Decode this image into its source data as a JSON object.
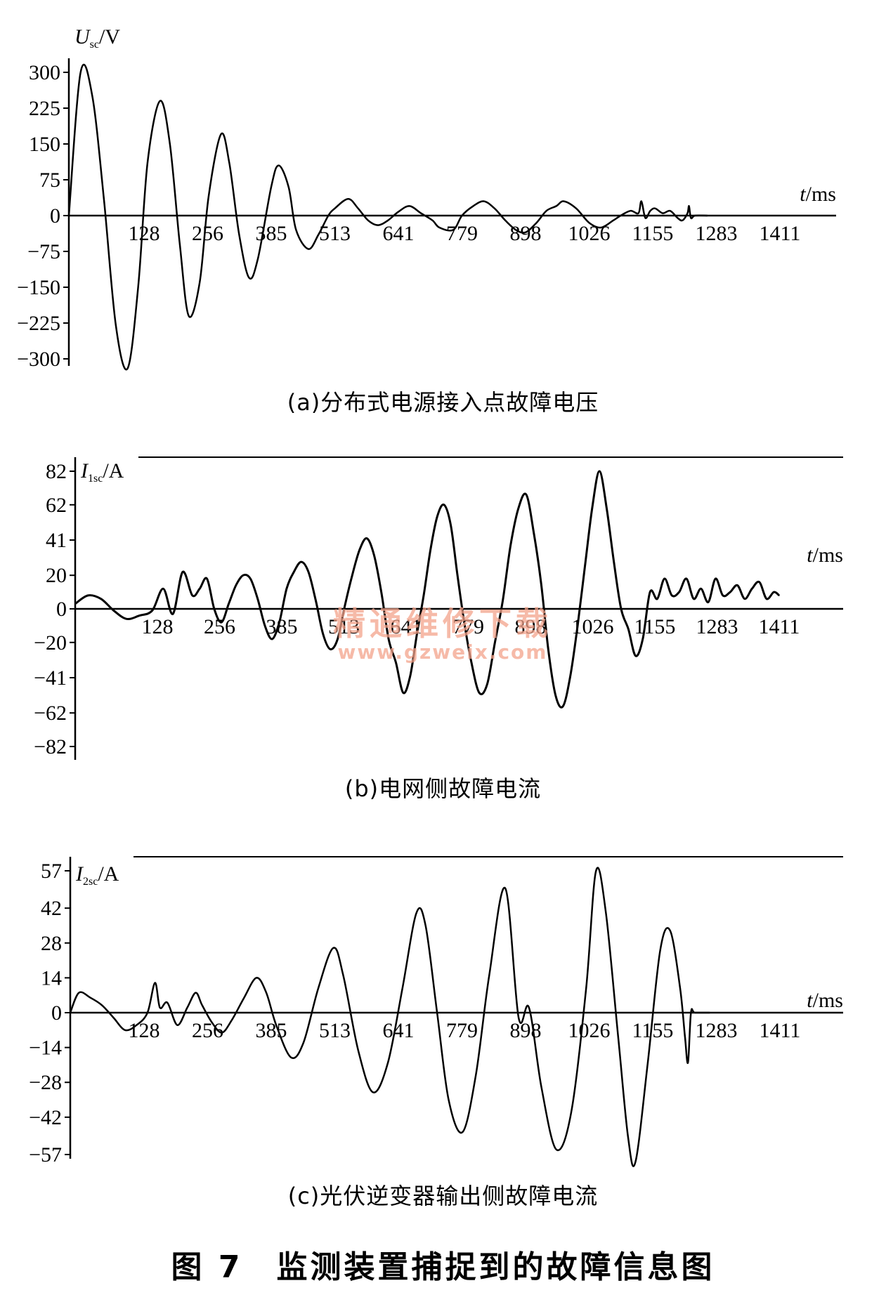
{
  "figure_title": "图 7　监测装置捕捉到的故障信息图",
  "watermark": {
    "line1": "精通维修下载",
    "line2": "www.gzweix.com"
  },
  "chart_data": [
    {
      "id": "a",
      "type": "line",
      "caption": "(a)分布式电源接入点故障电压",
      "ylabel": {
        "main": "U",
        "sub": "sc",
        "unit": "/V"
      },
      "xlabel": {
        "main": "t",
        "unit": "/ms"
      },
      "x_ticks": [
        128,
        256,
        385,
        513,
        641,
        779,
        898,
        1026,
        1155,
        1283,
        1411
      ],
      "y_ticks": [
        300,
        225,
        150,
        75,
        0,
        -75,
        -150,
        -225,
        -300
      ],
      "y_tick_labels": [
        "300",
        "225",
        "150",
        "75",
        "0",
        "−75",
        "−150",
        "−225",
        "−300"
      ],
      "xlim": [
        0,
        1411
      ],
      "ylim": [
        -300,
        300
      ],
      "frame_top": false,
      "series": [
        {
          "x": [
            0,
            20,
            40,
            60,
            80,
            100,
            118,
            135,
            160,
            180,
            200,
            218,
            240,
            258,
            283,
            300,
            320,
            340,
            358,
            385,
            400,
            420,
            435,
            460,
            480,
            500,
            513,
            540,
            560,
            580,
            600,
            620,
            641,
            665,
            690,
            715,
            730,
            760,
            779,
            800,
            820,
            840,
            860,
            880,
            898,
            920,
            940,
            960,
            975,
            1000,
            1026,
            1050,
            1075,
            1090,
            1110,
            1126,
            1132,
            1140,
            1150,
            1160,
            1175,
            1190,
            1205,
            1215,
            1225,
            1228,
            1232,
            1240,
            1265
          ],
          "y": [
            0,
            300,
            250,
            30,
            -230,
            -320,
            -150,
            110,
            240,
            150,
            -60,
            -210,
            -140,
            40,
            170,
            110,
            -40,
            -130,
            -90,
            60,
            105,
            60,
            -30,
            -70,
            -40,
            0,
            15,
            35,
            15,
            -10,
            -20,
            -10,
            8,
            20,
            5,
            -10,
            -25,
            -30,
            0,
            20,
            30,
            15,
            -10,
            -30,
            -35,
            -15,
            10,
            20,
            30,
            15,
            -15,
            -25,
            -10,
            0,
            10,
            5,
            30,
            -5,
            10,
            15,
            5,
            10,
            -5,
            -10,
            5,
            20,
            -5,
            0,
            0
          ]
        }
      ]
    },
    {
      "id": "b",
      "type": "line",
      "caption": "(b)电网侧故障电流",
      "ylabel": {
        "main": "I",
        "sub": "1sc",
        "unit": "/A"
      },
      "xlabel": {
        "main": "t",
        "unit": "/ms"
      },
      "x_ticks": [
        128,
        256,
        385,
        513,
        641,
        779,
        898,
        1026,
        1155,
        1283,
        1411
      ],
      "y_ticks": [
        82,
        62,
        41,
        20,
        0,
        -20,
        -41,
        -62,
        -82
      ],
      "y_tick_labels": [
        "82",
        "62",
        "41",
        "20",
        "0",
        "−20",
        "−41",
        "−62",
        "−82"
      ],
      "xlim": [
        0,
        1411
      ],
      "ylim": [
        -82,
        82
      ],
      "frame_top": true,
      "series": [
        {
          "x": [
            0,
            20,
            40,
            60,
            80,
            100,
            120,
            140,
            160,
            180,
            200,
            215,
            230,
            245,
            260,
            275,
            290,
            305,
            320,
            335,
            350,
            365,
            380,
            395,
            410,
            425,
            440,
            455,
            470,
            485,
            500,
            515,
            530,
            545,
            560,
            575,
            590,
            605,
            620,
            635,
            650,
            665,
            680,
            695,
            710,
            725,
            740,
            755,
            770,
            785,
            800,
            815,
            830,
            845,
            860,
            875,
            890,
            905,
            920,
            935,
            950,
            965,
            980,
            995,
            1010,
            1025,
            1040,
            1055,
            1070,
            1085,
            1100,
            1115,
            1130,
            1145,
            1160,
            1175,
            1190,
            1205,
            1220,
            1235,
            1250,
            1265,
            1280,
            1295,
            1310,
            1325,
            1340,
            1355,
            1370,
            1385,
            1400,
            1411
          ],
          "y": [
            3,
            8,
            6,
            -1,
            -6,
            -4,
            -1,
            12,
            -3,
            22,
            8,
            12,
            18,
            0,
            -8,
            3,
            14,
            20,
            18,
            6,
            -10,
            -18,
            -8,
            12,
            22,
            28,
            22,
            5,
            -15,
            -24,
            -18,
            2,
            20,
            35,
            42,
            32,
            10,
            -18,
            -32,
            -50,
            -40,
            -15,
            8,
            35,
            55,
            62,
            50,
            20,
            -8,
            -32,
            -50,
            -45,
            -20,
            5,
            38,
            60,
            68,
            45,
            15,
            -25,
            -52,
            -58,
            -40,
            -10,
            25,
            60,
            82,
            60,
            28,
            0,
            -12,
            -28,
            -18,
            10,
            6,
            18,
            8,
            10,
            18,
            6,
            12,
            4,
            18,
            8,
            10,
            14,
            6,
            12,
            16,
            6,
            10,
            8
          ]
        }
      ]
    },
    {
      "id": "c",
      "type": "line",
      "caption": "(c)光伏逆变器输出侧故障电流",
      "ylabel": {
        "main": "I",
        "sub": "2sc",
        "unit": "/A"
      },
      "xlabel": {
        "main": "t",
        "unit": "/ms"
      },
      "x_ticks": [
        128,
        256,
        385,
        513,
        641,
        779,
        898,
        1026,
        1155,
        1283,
        1411
      ],
      "y_ticks": [
        57,
        42,
        28,
        14,
        0,
        -14,
        -28,
        -42,
        -57
      ],
      "y_tick_labels": [
        "57",
        "42",
        "28",
        "14",
        "0",
        "−14",
        "−28",
        "−42",
        "−57"
      ],
      "xlim": [
        0,
        1411
      ],
      "ylim": [
        -57,
        57
      ],
      "frame_top": true,
      "series": [
        {
          "x": [
            0,
            15,
            35,
            55,
            75,
            95,
            115,
            135,
            150,
            160,
            175,
            195,
            215,
            232,
            245,
            265,
            285,
            305,
            330,
            355,
            375,
            395,
            425,
            450,
            480,
            510,
            530,
            560,
            590,
            620,
            650,
            680,
            700,
            725,
            750,
            780,
            805,
            830,
            860,
            885,
            905,
            930,
            960,
            990,
            1020,
            1040,
            1060,
            1085,
            1105,
            1120,
            1145,
            1170,
            1190,
            1210,
            1220,
            1226,
            1232,
            1240,
            1270
          ],
          "y": [
            0,
            8,
            6,
            3,
            -2,
            -7,
            -5,
            0,
            12,
            2,
            4,
            -5,
            2,
            8,
            3,
            -4,
            -8,
            -3,
            6,
            14,
            8,
            -5,
            -18,
            -12,
            10,
            26,
            15,
            -15,
            -32,
            -20,
            10,
            40,
            35,
            0,
            -35,
            -48,
            -25,
            15,
            50,
            -2,
            2,
            -30,
            -55,
            -40,
            10,
            57,
            40,
            -10,
            -50,
            -60,
            -20,
            25,
            33,
            10,
            -10,
            -20,
            0,
            0,
            0
          ]
        }
      ]
    }
  ]
}
